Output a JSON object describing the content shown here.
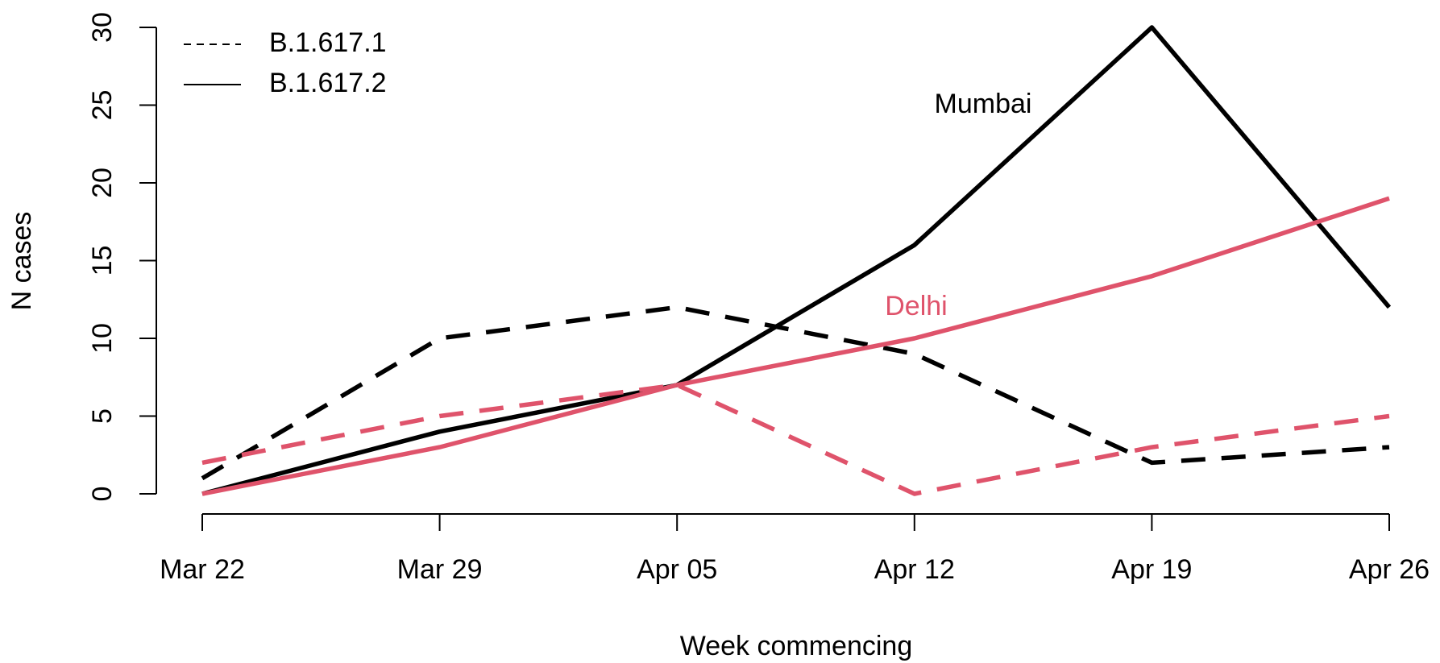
{
  "chart_data": {
    "type": "line",
    "xlabel": "Week commencing",
    "ylabel": "N cases",
    "categories": [
      "Mar 22",
      "Mar 29",
      "Apr 05",
      "Apr 12",
      "Apr 19",
      "Apr 26"
    ],
    "ylim": [
      0,
      30
    ],
    "yticks": [
      0,
      5,
      10,
      15,
      20,
      25,
      30
    ],
    "legend_position": "upper left",
    "legend": [
      {
        "name": "B.1.617.1",
        "style": "dashed"
      },
      {
        "name": "B.1.617.2",
        "style": "solid"
      }
    ],
    "groups": [
      {
        "label": "Mumbai",
        "color": "#000000",
        "series": [
          {
            "style": "dashed",
            "values": [
              1,
              10,
              12,
              9,
              2,
              3
            ]
          },
          {
            "style": "solid",
            "values": [
              0,
              4,
              7,
              16,
              30,
              12
            ]
          }
        ]
      },
      {
        "label": "Delhi",
        "color": "#df536b",
        "series": [
          {
            "style": "dashed",
            "values": [
              2,
              5,
              7,
              0,
              3,
              5
            ]
          },
          {
            "style": "solid",
            "values": [
              0,
              3,
              7,
              10,
              14,
              19
            ]
          }
        ]
      }
    ]
  }
}
